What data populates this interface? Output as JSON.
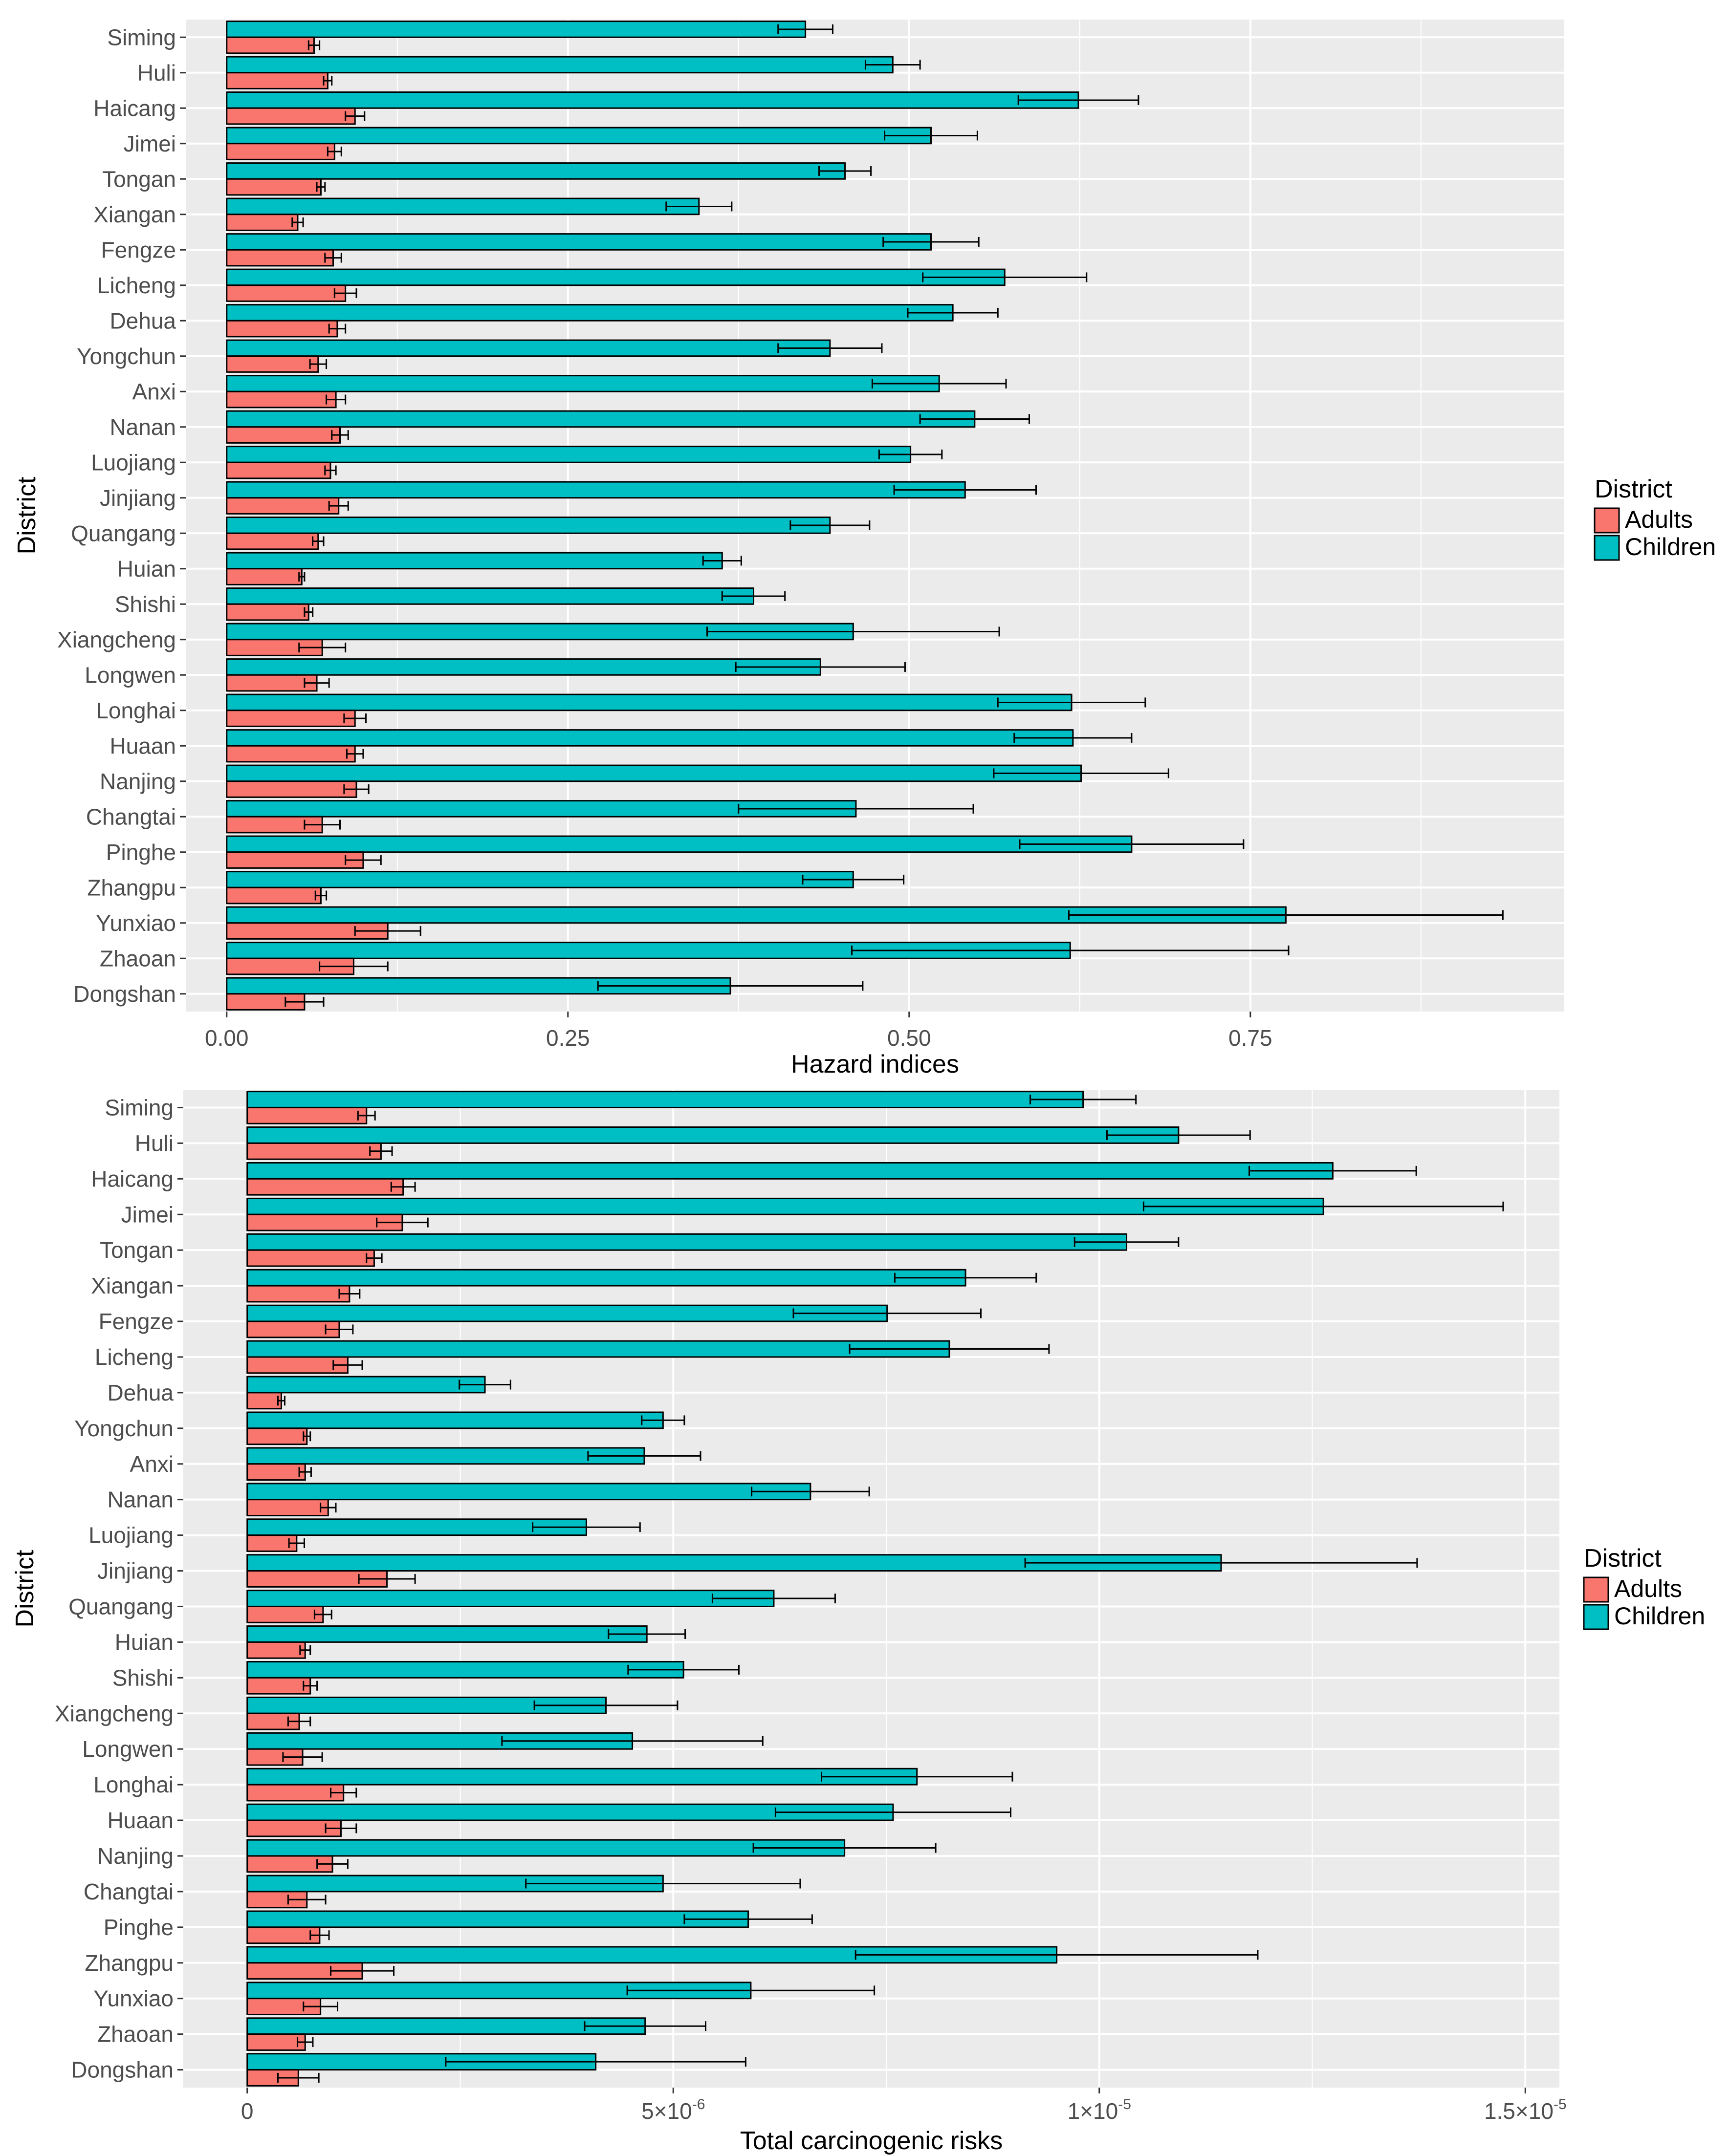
{
  "chart_data": [
    {
      "type": "bar",
      "orientation": "horizontal",
      "xlabel": "Hazard indices",
      "ylabel": "District",
      "xlim": [
        -0.03,
        0.98
      ],
      "xticks": [
        0,
        0.25,
        0.5,
        0.75
      ],
      "xtick_labels": [
        "0.00",
        "0.25",
        "0.50",
        "0.75"
      ],
      "grid": true,
      "legend_title": "District",
      "legend_placement": "right",
      "categories": [
        "Siming",
        "Huli",
        "Haicang",
        "Jimei",
        "Tongan",
        "Xiangan",
        "Fengze",
        "Licheng",
        "Dehua",
        "Yongchun",
        "Anxi",
        "Nanan",
        "Luojiang",
        "Jinjiang",
        "Quangang",
        "Huian",
        "Shishi",
        "Xiangcheng",
        "Longwen",
        "Longhai",
        "Huaan",
        "Nanjing",
        "Changtai",
        "Pinghe",
        "Zhangpu",
        "Yunxiao",
        "Zhaoan",
        "Dongshan"
      ],
      "series": [
        {
          "name": "Adults",
          "color": "#F8766D",
          "values": [
            0.064,
            0.074,
            0.094,
            0.079,
            0.069,
            0.052,
            0.078,
            0.087,
            0.081,
            0.067,
            0.08,
            0.083,
            0.076,
            0.082,
            0.067,
            0.055,
            0.06,
            0.07,
            0.066,
            0.094,
            0.094,
            0.095,
            0.07,
            0.1,
            0.069,
            0.118,
            0.093,
            0.057
          ],
          "errors": [
            0.004,
            0.003,
            0.007,
            0.005,
            0.003,
            0.004,
            0.006,
            0.008,
            0.006,
            0.006,
            0.007,
            0.006,
            0.004,
            0.007,
            0.004,
            0.002,
            0.003,
            0.017,
            0.009,
            0.008,
            0.006,
            0.009,
            0.013,
            0.013,
            0.004,
            0.024,
            0.025,
            0.014
          ]
        },
        {
          "name": "Children",
          "color": "#00BFC4",
          "values": [
            0.424,
            0.488,
            0.624,
            0.516,
            0.453,
            0.346,
            0.516,
            0.57,
            0.532,
            0.442,
            0.522,
            0.548,
            0.501,
            0.541,
            0.442,
            0.363,
            0.386,
            0.459,
            0.435,
            0.619,
            0.62,
            0.626,
            0.461,
            0.663,
            0.459,
            0.776,
            0.618,
            0.369
          ],
          "errors": [
            0.02,
            0.02,
            0.044,
            0.034,
            0.019,
            0.024,
            0.035,
            0.06,
            0.033,
            0.038,
            0.049,
            0.04,
            0.023,
            0.052,
            0.029,
            0.014,
            0.023,
            0.107,
            0.062,
            0.054,
            0.043,
            0.064,
            0.086,
            0.082,
            0.037,
            0.159,
            0.16,
            0.097
          ]
        }
      ]
    },
    {
      "type": "bar",
      "orientation": "horizontal",
      "xlabel": "Total carcinogenic risks",
      "ylabel": "District",
      "xlim": [
        -7.5e-07,
        1.54e-05
      ],
      "xticks": [
        0,
        5e-06,
        1e-05,
        1.5e-05
      ],
      "xtick_labels": [
        {
          "base": "0",
          "exp": ""
        },
        {
          "base": "5×10",
          "exp": "-6"
        },
        {
          "base": "1×10",
          "exp": "-5"
        },
        {
          "base": "1.5×10",
          "exp": "-5"
        }
      ],
      "grid": true,
      "legend_title": "District",
      "legend_placement": "right",
      "categories": [
        "Siming",
        "Huli",
        "Haicang",
        "Jimei",
        "Tongan",
        "Xiangan",
        "Fengze",
        "Licheng",
        "Dehua",
        "Yongchun",
        "Anxi",
        "Nanan",
        "Luojiang",
        "Jinjiang",
        "Quangang",
        "Huian",
        "Shishi",
        "Xiangcheng",
        "Longwen",
        "Longhai",
        "Huaan",
        "Nanjing",
        "Changtai",
        "Pinghe",
        "Zhangpu",
        "Yunxiao",
        "Zhaoan",
        "Dongshan"
      ],
      "series": [
        {
          "name": "Adults",
          "color": "#F8766D",
          "values": [
            1.4e-06,
            1.57e-06,
            1.83e-06,
            1.82e-06,
            1.49e-06,
            1.2e-06,
            1.08e-06,
            1.18e-06,
            4e-07,
            7e-07,
            6.8e-07,
            9.5e-07,
            5.8e-07,
            1.64e-06,
            8.9e-07,
            6.8e-07,
            7.4e-07,
            6.1e-07,
            6.5e-07,
            1.13e-06,
            1.1e-06,
            1e-06,
            7e-07,
            8.5e-07,
            1.35e-06,
            8.6e-07,
            6.8e-07,
            6e-07
          ],
          "errors": [
            1e-07,
            1.3e-07,
            1.4e-07,
            3e-07,
            9e-08,
            1.2e-07,
            1.6e-07,
            1.7e-07,
            4e-08,
            4e-08,
            7e-08,
            9e-08,
            9e-08,
            3.3e-07,
            1e-07,
            6e-08,
            8e-08,
            1.3e-07,
            2.3e-07,
            1.5e-07,
            1.8e-07,
            1.8e-07,
            2.2e-07,
            1.1e-07,
            3.7e-07,
            2e-07,
            9e-08,
            2.4e-07
          ]
        },
        {
          "name": "Children",
          "color": "#00BFC4",
          "values": [
            9.81e-06,
            1.093e-05,
            1.274e-05,
            1.263e-05,
            1.032e-05,
            8.43e-06,
            7.51e-06,
            8.24e-06,
            2.79e-06,
            4.88e-06,
            4.66e-06,
            6.61e-06,
            3.98e-06,
            1.143e-05,
            6.18e-06,
            4.69e-06,
            5.12e-06,
            4.21e-06,
            4.52e-06,
            7.86e-06,
            7.58e-06,
            7.01e-06,
            4.88e-06,
            5.88e-06,
            9.5e-06,
            5.91e-06,
            4.67e-06,
            4.09e-06
          ],
          "errors": [
            6.2e-07,
            8.4e-07,
            9.8e-07,
            2.11e-06,
            6.1e-07,
            8.3e-07,
            1.1e-06,
            1.17e-06,
            3e-07,
            2.5e-07,
            6.6e-07,
            6.9e-07,
            6.3e-07,
            2.3e-06,
            7.2e-07,
            4.5e-07,
            6.5e-07,
            8.4e-07,
            1.53e-06,
            1.12e-06,
            1.38e-06,
            1.07e-06,
            1.61e-06,
            7.5e-07,
            2.36e-06,
            1.45e-06,
            7.1e-07,
            1.76e-06
          ]
        }
      ]
    }
  ]
}
